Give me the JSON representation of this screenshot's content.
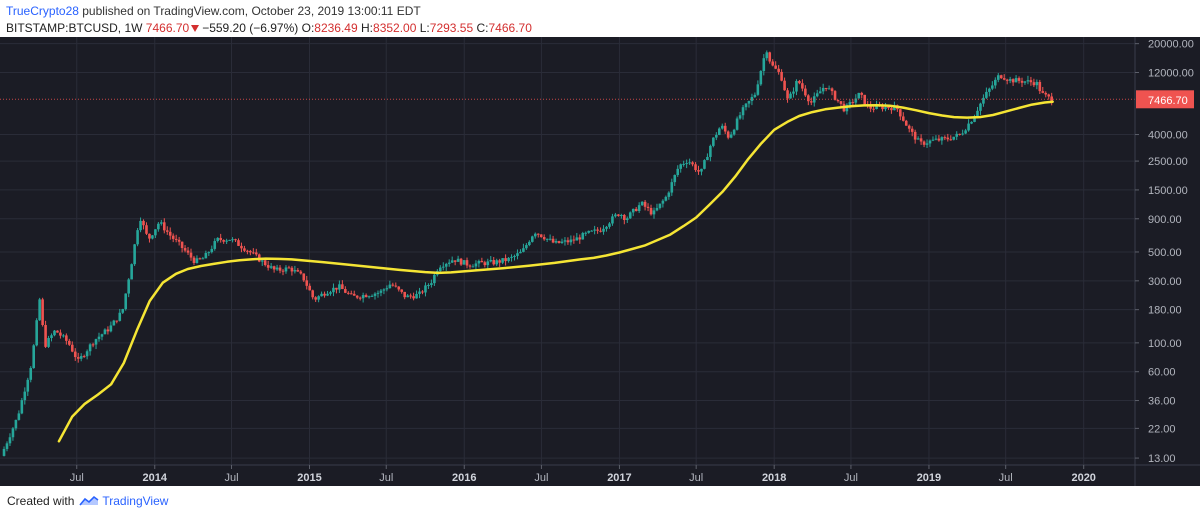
{
  "header": {
    "user": "TrueCrypto28",
    "published_text": " published on TradingView.com, October 23, 2019 13:00:11 EDT",
    "symbol": "BITSTAMP:BTCUSD, 1W",
    "last": "7466.70",
    "change": "−559.20 (−6.97%)",
    "o_label": "O:",
    "o_value": "8236.49",
    "h_label": "H:",
    "h_value": "8352.00",
    "l_label": "L:",
    "l_value": "7293.55",
    "c_label": "C:",
    "c_value": "7466.70"
  },
  "footer": {
    "created_with": "Created with",
    "brand": "TradingView"
  },
  "colors": {
    "background": "#1b1c25",
    "grid": "#2a2c38",
    "up": "#26a69a",
    "down": "#ef5350",
    "ma": "#f5e534",
    "price_label": "#ef5350",
    "axis_text": "#b2b5be",
    "brand_blue": "#2962ff"
  },
  "chart_data": {
    "type": "candlestick",
    "scale": "log",
    "interval": "1W",
    "grid": true,
    "x_axis_labels": [
      "Jul",
      "2014",
      "Jul",
      "2015",
      "Jul",
      "2016",
      "Jul",
      "2017",
      "Jul",
      "2018",
      "Jul",
      "2019",
      "Jul",
      "2020"
    ],
    "x_axis_dates": [
      "2013-07-01",
      "2014-01-01",
      "2014-07-01",
      "2015-01-01",
      "2015-07-01",
      "2016-01-01",
      "2016-07-01",
      "2017-01-01",
      "2017-07-01",
      "2018-01-01",
      "2018-07-01",
      "2019-01-01",
      "2019-07-01",
      "2020-01-01"
    ],
    "y_axis_labels": [
      "20000.00",
      "12000.00",
      "4000.00",
      "2500.00",
      "1500.00",
      "900.00",
      "500.00",
      "300.00",
      "180.00",
      "100.00",
      "60.00",
      "36.00",
      "22.00",
      "13.00"
    ],
    "y_axis_values": [
      20000,
      12000,
      4000,
      2500,
      1500,
      900,
      500,
      300,
      180,
      100,
      60,
      36,
      22,
      13
    ],
    "ylim": [
      11.5,
      22500
    ],
    "xlim": [
      "2013-01-01",
      "2020-05-01"
    ],
    "last_price_label": "7466.70",
    "last_price": 7466.7,
    "price_anchors": [
      [
        "2013-01-07",
        13.5
      ],
      [
        "2013-02-15",
        27
      ],
      [
        "2013-03-20",
        70
      ],
      [
        "2013-04-08",
        215
      ],
      [
        "2013-04-20",
        95
      ],
      [
        "2013-05-15",
        125
      ],
      [
        "2013-06-15",
        100
      ],
      [
        "2013-07-08",
        72
      ],
      [
        "2013-08-15",
        105
      ],
      [
        "2013-09-20",
        130
      ],
      [
        "2013-10-20",
        175
      ],
      [
        "2013-11-10",
        400
      ],
      [
        "2013-11-30",
        950
      ],
      [
        "2013-12-20",
        620
      ],
      [
        "2014-01-15",
        850
      ],
      [
        "2014-02-10",
        670
      ],
      [
        "2014-03-01",
        580
      ],
      [
        "2014-04-10",
        420
      ],
      [
        "2014-05-01",
        450
      ],
      [
        "2014-06-01",
        620
      ],
      [
        "2014-07-01",
        630
      ],
      [
        "2014-08-10",
        520
      ],
      [
        "2014-09-20",
        410
      ],
      [
        "2014-10-15",
        360
      ],
      [
        "2014-11-20",
        375
      ],
      [
        "2014-12-20",
        320
      ],
      [
        "2015-01-15",
        215
      ],
      [
        "2015-02-15",
        250
      ],
      [
        "2015-03-15",
        270
      ],
      [
        "2015-04-15",
        225
      ],
      [
        "2015-05-20",
        235
      ],
      [
        "2015-06-20",
        245
      ],
      [
        "2015-07-15",
        285
      ],
      [
        "2015-08-20",
        225
      ],
      [
        "2015-09-20",
        235
      ],
      [
        "2015-10-20",
        300
      ],
      [
        "2015-11-05",
        390
      ],
      [
        "2015-12-10",
        440
      ],
      [
        "2016-01-15",
        400
      ],
      [
        "2016-02-15",
        410
      ],
      [
        "2016-03-15",
        415
      ],
      [
        "2016-04-20",
        440
      ],
      [
        "2016-05-20",
        500
      ],
      [
        "2016-06-18",
        720
      ],
      [
        "2016-07-05",
        670
      ],
      [
        "2016-08-05",
        580
      ],
      [
        "2016-09-15",
        610
      ],
      [
        "2016-10-20",
        690
      ],
      [
        "2016-11-20",
        740
      ],
      [
        "2016-12-25",
        940
      ],
      [
        "2017-01-05",
        1000
      ],
      [
        "2017-01-20",
        900
      ],
      [
        "2017-02-25",
        1180
      ],
      [
        "2017-03-25",
        980
      ],
      [
        "2017-04-25",
        1330
      ],
      [
        "2017-05-25",
        2300
      ],
      [
        "2017-06-15",
        2550
      ],
      [
        "2017-07-15",
        2000
      ],
      [
        "2017-08-10",
        3500
      ],
      [
        "2017-09-01",
        4700
      ],
      [
        "2017-09-20",
        3800
      ],
      [
        "2017-10-20",
        6000
      ],
      [
        "2017-11-20",
        8200
      ],
      [
        "2017-12-17",
        18500
      ],
      [
        "2017-12-28",
        13800
      ],
      [
        "2018-01-20",
        11500
      ],
      [
        "2018-02-06",
        7200
      ],
      [
        "2018-03-01",
        10500
      ],
      [
        "2018-04-01",
        7000
      ],
      [
        "2018-05-05",
        9600
      ],
      [
        "2018-06-20",
        6200
      ],
      [
        "2018-07-25",
        8200
      ],
      [
        "2018-08-15",
        6400
      ],
      [
        "2018-09-15",
        6500
      ],
      [
        "2018-10-20",
        6450
      ],
      [
        "2018-11-20",
        4300
      ],
      [
        "2018-12-15",
        3400
      ],
      [
        "2019-01-15",
        3600
      ],
      [
        "2019-02-15",
        3700
      ],
      [
        "2019-03-20",
        4000
      ],
      [
        "2019-04-15",
        5200
      ],
      [
        "2019-05-15",
        7800
      ],
      [
        "2019-06-20",
        11500
      ],
      [
        "2019-07-15",
        10500
      ],
      [
        "2019-08-15",
        10300
      ],
      [
        "2019-09-15",
        10000
      ],
      [
        "2019-09-28",
        8200
      ],
      [
        "2019-10-20",
        7466.7
      ]
    ],
    "series": [
      {
        "name": "",
        "type": "line",
        "values": [
          [
            "2013-05-20",
            17.5
          ],
          [
            "2013-06-20",
            27
          ],
          [
            "2013-07-20",
            34
          ],
          [
            "2013-08-20",
            40
          ],
          [
            "2013-09-20",
            48
          ],
          [
            "2013-10-20",
            70
          ],
          [
            "2013-11-20",
            125
          ],
          [
            "2013-12-20",
            210
          ],
          [
            "2014-01-20",
            290
          ],
          [
            "2014-02-20",
            340
          ],
          [
            "2014-03-20",
            370
          ],
          [
            "2014-04-20",
            390
          ],
          [
            "2014-05-20",
            405
          ],
          [
            "2014-06-20",
            420
          ],
          [
            "2014-07-20",
            432
          ],
          [
            "2014-08-20",
            440
          ],
          [
            "2014-09-20",
            445
          ],
          [
            "2014-10-20",
            442
          ],
          [
            "2014-11-20",
            438
          ],
          [
            "2014-12-20",
            430
          ],
          [
            "2015-02-01",
            418
          ],
          [
            "2015-04-01",
            400
          ],
          [
            "2015-06-01",
            382
          ],
          [
            "2015-08-01",
            364
          ],
          [
            "2015-10-01",
            350
          ],
          [
            "2015-11-01",
            345
          ],
          [
            "2015-12-01",
            348
          ],
          [
            "2016-02-01",
            362
          ],
          [
            "2016-04-01",
            375
          ],
          [
            "2016-06-01",
            392
          ],
          [
            "2016-08-01",
            412
          ],
          [
            "2016-10-01",
            438
          ],
          [
            "2016-11-01",
            450
          ],
          [
            "2016-12-01",
            470
          ],
          [
            "2017-01-01",
            495
          ],
          [
            "2017-03-01",
            560
          ],
          [
            "2017-05-01",
            680
          ],
          [
            "2017-06-01",
            790
          ],
          [
            "2017-07-01",
            920
          ],
          [
            "2017-08-01",
            1150
          ],
          [
            "2017-09-01",
            1450
          ],
          [
            "2017-10-01",
            1900
          ],
          [
            "2017-11-01",
            2600
          ],
          [
            "2017-12-01",
            3400
          ],
          [
            "2018-01-01",
            4350
          ],
          [
            "2018-02-01",
            5000
          ],
          [
            "2018-03-01",
            5550
          ],
          [
            "2018-04-01",
            5950
          ],
          [
            "2018-05-01",
            6250
          ],
          [
            "2018-06-01",
            6450
          ],
          [
            "2018-07-01",
            6600
          ],
          [
            "2018-08-01",
            6700
          ],
          [
            "2018-09-01",
            6720
          ],
          [
            "2018-10-01",
            6650
          ],
          [
            "2018-11-01",
            6450
          ],
          [
            "2018-12-01",
            6150
          ],
          [
            "2019-01-01",
            5850
          ],
          [
            "2019-02-01",
            5600
          ],
          [
            "2019-03-01",
            5450
          ],
          [
            "2019-04-01",
            5400
          ],
          [
            "2019-05-01",
            5450
          ],
          [
            "2019-06-01",
            5650
          ],
          [
            "2019-07-01",
            6000
          ],
          [
            "2019-08-01",
            6400
          ],
          [
            "2019-09-01",
            6800
          ],
          [
            "2019-10-01",
            7050
          ],
          [
            "2019-10-20",
            7150
          ]
        ]
      }
    ]
  }
}
